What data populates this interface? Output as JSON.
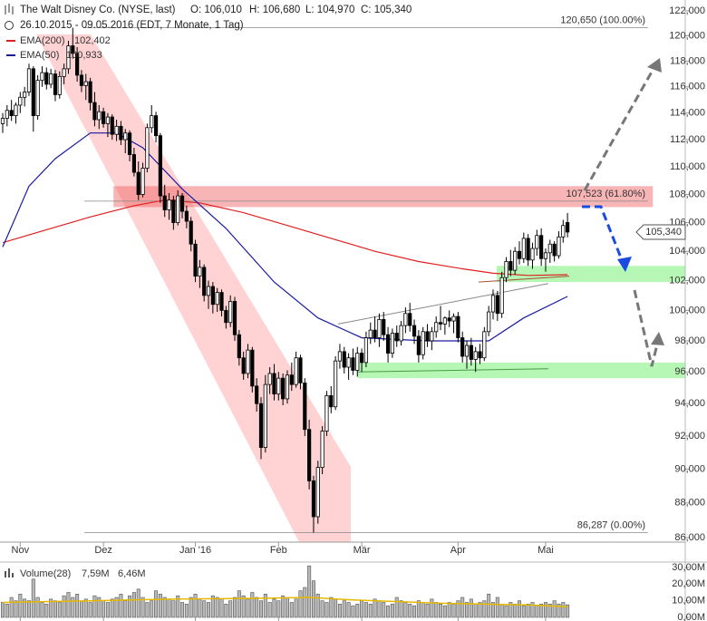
{
  "chart_data": {
    "type": "candlestick",
    "log_scale": true,
    "title": "The Walt Disney Co. (NYSE, last)",
    "ohlc_labels": [
      "O: 106,010",
      "H: 106,680",
      "L: 104,970",
      "C: 105,340"
    ],
    "subtitle": "26.10.2015 - 09.05.2016 (EDT, 7 Monate, 1 Tag)",
    "last_label": "105,340",
    "xlim": [
      -0.62,
      147.4
    ],
    "xticks": [
      {
        "value": 4,
        "label": "Nov"
      },
      {
        "value": 23,
        "label": "Dez"
      },
      {
        "value": 44,
        "label": "Jan '16"
      },
      {
        "value": 63,
        "label": "Feb"
      },
      {
        "value": 82,
        "label": "Mär"
      },
      {
        "value": 104,
        "label": "Apr"
      },
      {
        "value": 124,
        "label": "Mai"
      }
    ],
    "ylim": [
      86,
      122
    ],
    "yticks": [
      {
        "value": 86,
        "label": "86,000"
      },
      {
        "value": 88,
        "label": "88,000"
      },
      {
        "value": 90,
        "label": "90,000"
      },
      {
        "value": 92,
        "label": "92,000"
      },
      {
        "value": 94,
        "label": "94,000"
      },
      {
        "value": 96,
        "label": "96,000"
      },
      {
        "value": 98,
        "label": "98,000"
      },
      {
        "value": 100,
        "label": "100,000"
      },
      {
        "value": 102,
        "label": "102,000"
      },
      {
        "value": 104,
        "label": "104,000"
      },
      {
        "value": 106,
        "label": "106,000"
      },
      {
        "value": 108,
        "label": "108,000"
      },
      {
        "value": 110,
        "label": "110,000"
      },
      {
        "value": 112,
        "label": "112,000"
      },
      {
        "value": 114,
        "label": "114,000"
      },
      {
        "value": 116,
        "label": "116,000"
      },
      {
        "value": 118,
        "label": "118,000"
      },
      {
        "value": 120,
        "label": "120,000"
      },
      {
        "value": 122,
        "label": "122,000"
      }
    ],
    "candles": [
      [
        113.2,
        114.0,
        112.5,
        113.6
      ],
      [
        113.6,
        114.6,
        113.0,
        114.2
      ],
      [
        114.2,
        115.0,
        113.4,
        113.8
      ],
      [
        113.8,
        114.8,
        113.2,
        114.6
      ],
      [
        114.6,
        115.6,
        114.0,
        115.2
      ],
      [
        115.2,
        116.0,
        114.5,
        115.6
      ],
      [
        115.6,
        117.8,
        115.3,
        117.4
      ],
      [
        117.4,
        117.6,
        112.6,
        113.8
      ],
      [
        113.8,
        116.9,
        113.5,
        116.5
      ],
      [
        116.5,
        117.6,
        116.0,
        117.1
      ],
      [
        117.1,
        117.5,
        115.8,
        116.2
      ],
      [
        116.2,
        117.4,
        115.9,
        117.0
      ],
      [
        117.0,
        117.3,
        114.9,
        115.4
      ],
      [
        115.4,
        117.2,
        115.1,
        116.8
      ],
      [
        116.8,
        117.8,
        116.2,
        117.4
      ],
      [
        117.4,
        119.6,
        117.0,
        119.2
      ],
      [
        119.2,
        120.65,
        118.2,
        118.6
      ],
      [
        118.6,
        119.1,
        116.4,
        116.9
      ],
      [
        116.9,
        117.3,
        115.6,
        116.1
      ],
      [
        116.1,
        117.0,
        115.0,
        116.4
      ],
      [
        116.4,
        116.7,
        114.2,
        114.8
      ],
      [
        114.8,
        115.6,
        113.0,
        113.5
      ],
      [
        113.5,
        114.6,
        112.8,
        114.1
      ],
      [
        114.1,
        114.4,
        112.9,
        113.2
      ],
      [
        113.2,
        114.0,
        112.2,
        113.7
      ],
      [
        113.7,
        113.9,
        112.0,
        112.4
      ],
      [
        112.4,
        113.5,
        111.9,
        113.0
      ],
      [
        113.0,
        113.4,
        111.6,
        112.0
      ],
      [
        112.0,
        112.8,
        111.0,
        112.5
      ],
      [
        112.5,
        112.7,
        110.4,
        110.9
      ],
      [
        110.9,
        111.4,
        109.3,
        109.6
      ],
      [
        109.6,
        110.4,
        107.6,
        108.0
      ],
      [
        108.0,
        110.3,
        107.8,
        109.9
      ],
      [
        109.9,
        113.2,
        109.6,
        112.9
      ],
      [
        112.9,
        114.6,
        112.5,
        113.8
      ],
      [
        113.8,
        114.1,
        111.8,
        112.3
      ],
      [
        112.3,
        112.5,
        107.4,
        107.9
      ],
      [
        107.9,
        108.7,
        106.4,
        106.9
      ],
      [
        106.9,
        108.1,
        106.2,
        107.6
      ],
      [
        107.6,
        107.9,
        105.5,
        106.0
      ],
      [
        106.0,
        108.3,
        105.8,
        107.9
      ],
      [
        107.9,
        108.1,
        106.3,
        106.8
      ],
      [
        106.8,
        107.2,
        105.6,
        106.1
      ],
      [
        106.1,
        106.4,
        104.0,
        104.5
      ],
      [
        104.5,
        104.8,
        101.9,
        102.3
      ],
      [
        102.3,
        103.4,
        101.5,
        102.9
      ],
      [
        102.9,
        103.1,
        100.6,
        101.0
      ],
      [
        101.0,
        102.0,
        100.1,
        101.6
      ],
      [
        101.6,
        101.9,
        99.8,
        100.4
      ],
      [
        100.4,
        101.5,
        99.9,
        101.2
      ],
      [
        101.2,
        101.4,
        99.6,
        100.0
      ],
      [
        100.0,
        100.3,
        98.8,
        99.2
      ],
      [
        99.2,
        101.0,
        98.9,
        100.6
      ],
      [
        100.6,
        100.9,
        98.0,
        98.4
      ],
      [
        98.4,
        98.7,
        96.4,
        96.9
      ],
      [
        96.9,
        97.3,
        95.5,
        95.9
      ],
      [
        95.9,
        97.8,
        95.6,
        97.4
      ],
      [
        97.4,
        97.6,
        94.7,
        95.1
      ],
      [
        95.1,
        95.6,
        93.5,
        94.0
      ],
      [
        94.0,
        94.4,
        90.6,
        91.3
      ],
      [
        91.3,
        95.8,
        91.0,
        95.2
      ],
      [
        95.2,
        96.3,
        94.6,
        95.9
      ],
      [
        95.9,
        96.5,
        94.2,
        94.6
      ],
      [
        94.6,
        96.0,
        94.2,
        95.6
      ],
      [
        95.6,
        95.9,
        93.9,
        94.3
      ],
      [
        94.3,
        96.1,
        94.0,
        95.8
      ],
      [
        95.8,
        96.6,
        94.8,
        95.2
      ],
      [
        95.2,
        97.3,
        95.0,
        96.9
      ],
      [
        96.9,
        97.1,
        94.9,
        95.3
      ],
      [
        95.3,
        95.6,
        92.0,
        92.4
      ],
      [
        92.4,
        93.0,
        88.8,
        89.3
      ],
      [
        89.3,
        89.6,
        86.287,
        87.2
      ],
      [
        87.2,
        90.5,
        86.8,
        90.1
      ],
      [
        90.1,
        92.6,
        89.7,
        92.3
      ],
      [
        92.3,
        94.8,
        92.0,
        94.5
      ],
      [
        94.5,
        95.1,
        93.4,
        93.8
      ],
      [
        93.8,
        97.0,
        93.6,
        96.7
      ],
      [
        96.7,
        97.8,
        96.2,
        97.3
      ],
      [
        97.3,
        97.6,
        95.9,
        96.3
      ],
      [
        96.3,
        97.2,
        95.5,
        96.9
      ],
      [
        96.9,
        97.5,
        95.8,
        96.1
      ],
      [
        96.1,
        97.6,
        95.7,
        97.2
      ],
      [
        97.2,
        97.5,
        96.0,
        96.6
      ],
      [
        96.6,
        98.6,
        96.3,
        98.2
      ],
      [
        98.2,
        99.2,
        97.8,
        98.7
      ],
      [
        98.7,
        99.6,
        97.9,
        98.2
      ],
      [
        98.2,
        99.8,
        97.6,
        99.4
      ],
      [
        99.4,
        99.9,
        98.0,
        98.4
      ],
      [
        98.4,
        98.9,
        96.6,
        97.2
      ],
      [
        97.2,
        98.8,
        96.9,
        98.5
      ],
      [
        98.5,
        99.0,
        97.6,
        98.0
      ],
      [
        98.0,
        99.3,
        97.7,
        99.0
      ],
      [
        99.0,
        100.2,
        98.5,
        99.8
      ],
      [
        99.8,
        100.5,
        98.6,
        99.0
      ],
      [
        99.0,
        99.4,
        97.8,
        98.3
      ],
      [
        98.3,
        98.7,
        96.6,
        97.1
      ],
      [
        97.1,
        98.9,
        96.8,
        98.6
      ],
      [
        98.6,
        99.1,
        97.6,
        98.0
      ],
      [
        98.0,
        98.9,
        97.4,
        98.6
      ],
      [
        98.6,
        99.6,
        98.2,
        99.2
      ],
      [
        99.2,
        100.3,
        98.7,
        99.1
      ],
      [
        99.1,
        99.6,
        98.4,
        99.5
      ],
      [
        99.5,
        100.0,
        98.9,
        99.3
      ],
      [
        99.3,
        99.8,
        98.5,
        99.6
      ],
      [
        99.6,
        99.9,
        97.9,
        98.2
      ],
      [
        98.2,
        98.6,
        96.6,
        97.0
      ],
      [
        97.0,
        98.0,
        96.2,
        97.7
      ],
      [
        97.7,
        98.2,
        96.4,
        96.8
      ],
      [
        96.8,
        97.6,
        96.0,
        97.3
      ],
      [
        97.3,
        97.8,
        96.5,
        96.9
      ],
      [
        96.9,
        98.9,
        96.7,
        98.6
      ],
      [
        98.6,
        100.3,
        98.3,
        99.9
      ],
      [
        99.9,
        101.4,
        99.4,
        101.0
      ],
      [
        101.0,
        101.3,
        99.3,
        99.8
      ],
      [
        99.8,
        102.6,
        99.5,
        102.2
      ],
      [
        102.2,
        103.6,
        101.9,
        103.3
      ],
      [
        103.3,
        104.1,
        102.3,
        102.7
      ],
      [
        102.7,
        104.3,
        102.4,
        104.0
      ],
      [
        104.0,
        104.7,
        103.1,
        103.5
      ],
      [
        103.5,
        105.3,
        103.2,
        104.9
      ],
      [
        104.9,
        105.2,
        103.0,
        103.4
      ],
      [
        103.4,
        104.6,
        102.8,
        104.2
      ],
      [
        104.2,
        105.5,
        103.7,
        105.1
      ],
      [
        105.1,
        105.6,
        103.0,
        103.5
      ],
      [
        103.5,
        104.2,
        102.6,
        103.9
      ],
      [
        103.9,
        104.8,
        103.2,
        104.5
      ],
      [
        104.5,
        104.7,
        103.3,
        103.7
      ],
      [
        103.7,
        105.4,
        103.5,
        105.0
      ],
      [
        105.0,
        106.2,
        104.6,
        105.8
      ],
      [
        106.01,
        106.68,
        104.97,
        105.34
      ]
    ],
    "series": [
      {
        "name": "EMA(200)",
        "color": "#e02020",
        "value_label": "102,402",
        "x": [
          0,
          10,
          20,
          30,
          37,
          45,
          55,
          65,
          75,
          85,
          95,
          105,
          112,
          120,
          129
        ],
        "values": [
          104.6,
          105.5,
          106.4,
          107.2,
          107.6,
          107.4,
          106.7,
          105.8,
          104.9,
          104.0,
          103.3,
          102.8,
          102.5,
          102.35,
          102.402
        ]
      },
      {
        "name": "EMA(50)",
        "color": "#1a1aa0",
        "value_label": "100,933",
        "x": [
          0,
          6,
          12,
          20,
          26,
          32,
          41,
          51,
          62,
          72,
          82,
          97,
          111,
          119,
          129
        ],
        "values": [
          104.3,
          108.6,
          110.6,
          112.5,
          112.5,
          111.4,
          108.4,
          105.6,
          101.9,
          99.5,
          98.2,
          98.0,
          98.0,
          99.5,
          100.933
        ]
      }
    ],
    "zones": [
      {
        "color": "rgba(240,90,90,0.45)",
        "xlim": [
          25.3,
          148.5
        ],
        "ylim": [
          107.1,
          108.6
        ]
      },
      {
        "color": "rgba(110,240,110,0.5)",
        "xlim": [
          112.8,
          156
        ],
        "ylim": [
          101.9,
          103.0
        ]
      },
      {
        "color": "rgba(110,240,110,0.5)",
        "xlim": [
          81,
          156
        ],
        "ylim": [
          95.6,
          96.6
        ]
      }
    ],
    "lines": [
      {
        "color": "#888888",
        "x": [
          76.6,
          124.6
        ],
        "y": [
          99.1,
          101.8
        ]
      },
      {
        "color": "#4a9a4a",
        "x": [
          81.2,
          124.6
        ],
        "y": [
          96.0,
          96.2
        ]
      },
      {
        "color": "#a0522d",
        "x": [
          108.7,
          129.4
        ],
        "y": [
          101.9,
          102.3
        ]
      }
    ],
    "fib": [
      {
        "value": 120.65,
        "label": "120,650 (100.00%)"
      },
      {
        "value": 107.523,
        "label": "107,523 (61.80%)"
      },
      {
        "value": 86.287,
        "label": "86,287 (0.00%)"
      }
    ],
    "volume": {
      "name": "Volume(28)",
      "value_label": "7,59M",
      "color": "#b8b8b8",
      "ylim": [
        0,
        30
      ],
      "yticks": [
        {
          "value": 0,
          "label": "0,00M"
        },
        {
          "value": 10,
          "label": "10,00M"
        },
        {
          "value": 20,
          "label": "20,00M"
        },
        {
          "value": 30,
          "label": "30,00M"
        }
      ],
      "values": [
        9,
        8,
        12,
        10,
        14,
        11,
        10,
        23,
        12,
        9,
        8,
        11,
        10,
        9,
        13,
        15,
        12,
        14,
        10,
        11,
        9,
        13,
        12,
        10,
        9,
        11,
        12,
        14,
        10,
        13,
        15,
        17,
        12,
        9,
        10,
        16,
        14,
        12,
        11,
        10,
        13,
        9,
        8,
        12,
        14,
        11,
        10,
        9,
        13,
        12,
        11,
        8,
        10,
        12,
        16,
        13,
        11,
        15,
        12,
        10,
        14,
        9,
        11,
        10,
        13,
        12,
        9,
        11,
        16,
        18,
        31,
        22,
        14,
        10,
        9,
        12,
        11,
        8,
        10,
        9,
        7,
        8,
        10,
        9,
        8,
        11,
        10,
        9,
        7,
        8,
        12,
        10,
        9,
        8,
        7,
        10,
        9,
        8,
        11,
        9,
        8,
        7,
        9,
        8,
        10,
        12,
        9,
        11,
        8,
        9,
        10,
        14,
        9,
        12,
        8,
        7,
        9,
        8,
        10,
        7,
        8,
        9,
        7,
        8,
        9,
        8,
        10,
        8,
        9,
        7.59
      ],
      "ema": {
        "color": "#e8b800",
        "value_label": "6,46M",
        "x": [
          0,
          20,
          40,
          60,
          70,
          80,
          100,
          120,
          129
        ],
        "values": [
          9,
          10,
          11,
          11.5,
          12,
          10.5,
          8.5,
          7.5,
          6.46
        ]
      }
    }
  }
}
